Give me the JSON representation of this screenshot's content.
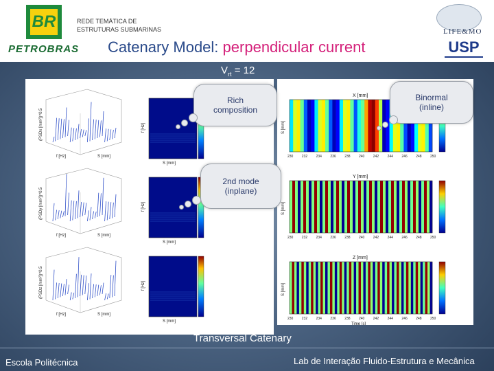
{
  "header": {
    "logo_text": "BR",
    "brand_name": "PETROBRAS",
    "network_line1": "REDE TEMÁTICA DE",
    "network_line2": "ESTRUTURAS SUBMARINAS",
    "title_prefix": "Catenary Model:",
    "title_highlight": "perpendicular current",
    "lab_name": "LIFE&MO",
    "university": "USP"
  },
  "velocity": {
    "label": "V",
    "sub": "rt",
    "value": "= 12"
  },
  "callouts": {
    "rich": "Rich composition",
    "second_mode": "2nd mode (inplane)",
    "binormal": "Binormal (inline)"
  },
  "plots": {
    "panel_titles": [
      "X [mm]",
      "Y [mm]",
      "Z [mm]"
    ],
    "left_labels": {
      "f_hz": "f [Hz]",
      "s_mm": "S [mm]",
      "zero": "0"
    },
    "psd_labels": [
      "(PSDx [mm²])^0.5",
      "(PSDy [mm²])^0.5",
      "(PSDz [mm²])^0.5"
    ],
    "time_label": "Time [s]",
    "s_axis": "S [mm]",
    "time_ticks": [
      "230",
      "232",
      "234",
      "236",
      "238",
      "240",
      "242",
      "244",
      "246",
      "248",
      "250"
    ]
  },
  "caption": "Transversal Catenary",
  "footer": {
    "left": "Escola Politécnica",
    "right": "Lab de Interação Fluido-Estrutura e Mecânica"
  },
  "colors": {
    "title_blue": "#2a4a8a",
    "title_pink": "#d4207a",
    "petrobras_green": "#1e8a3c",
    "petrobras_yellow": "#f6d10e"
  }
}
